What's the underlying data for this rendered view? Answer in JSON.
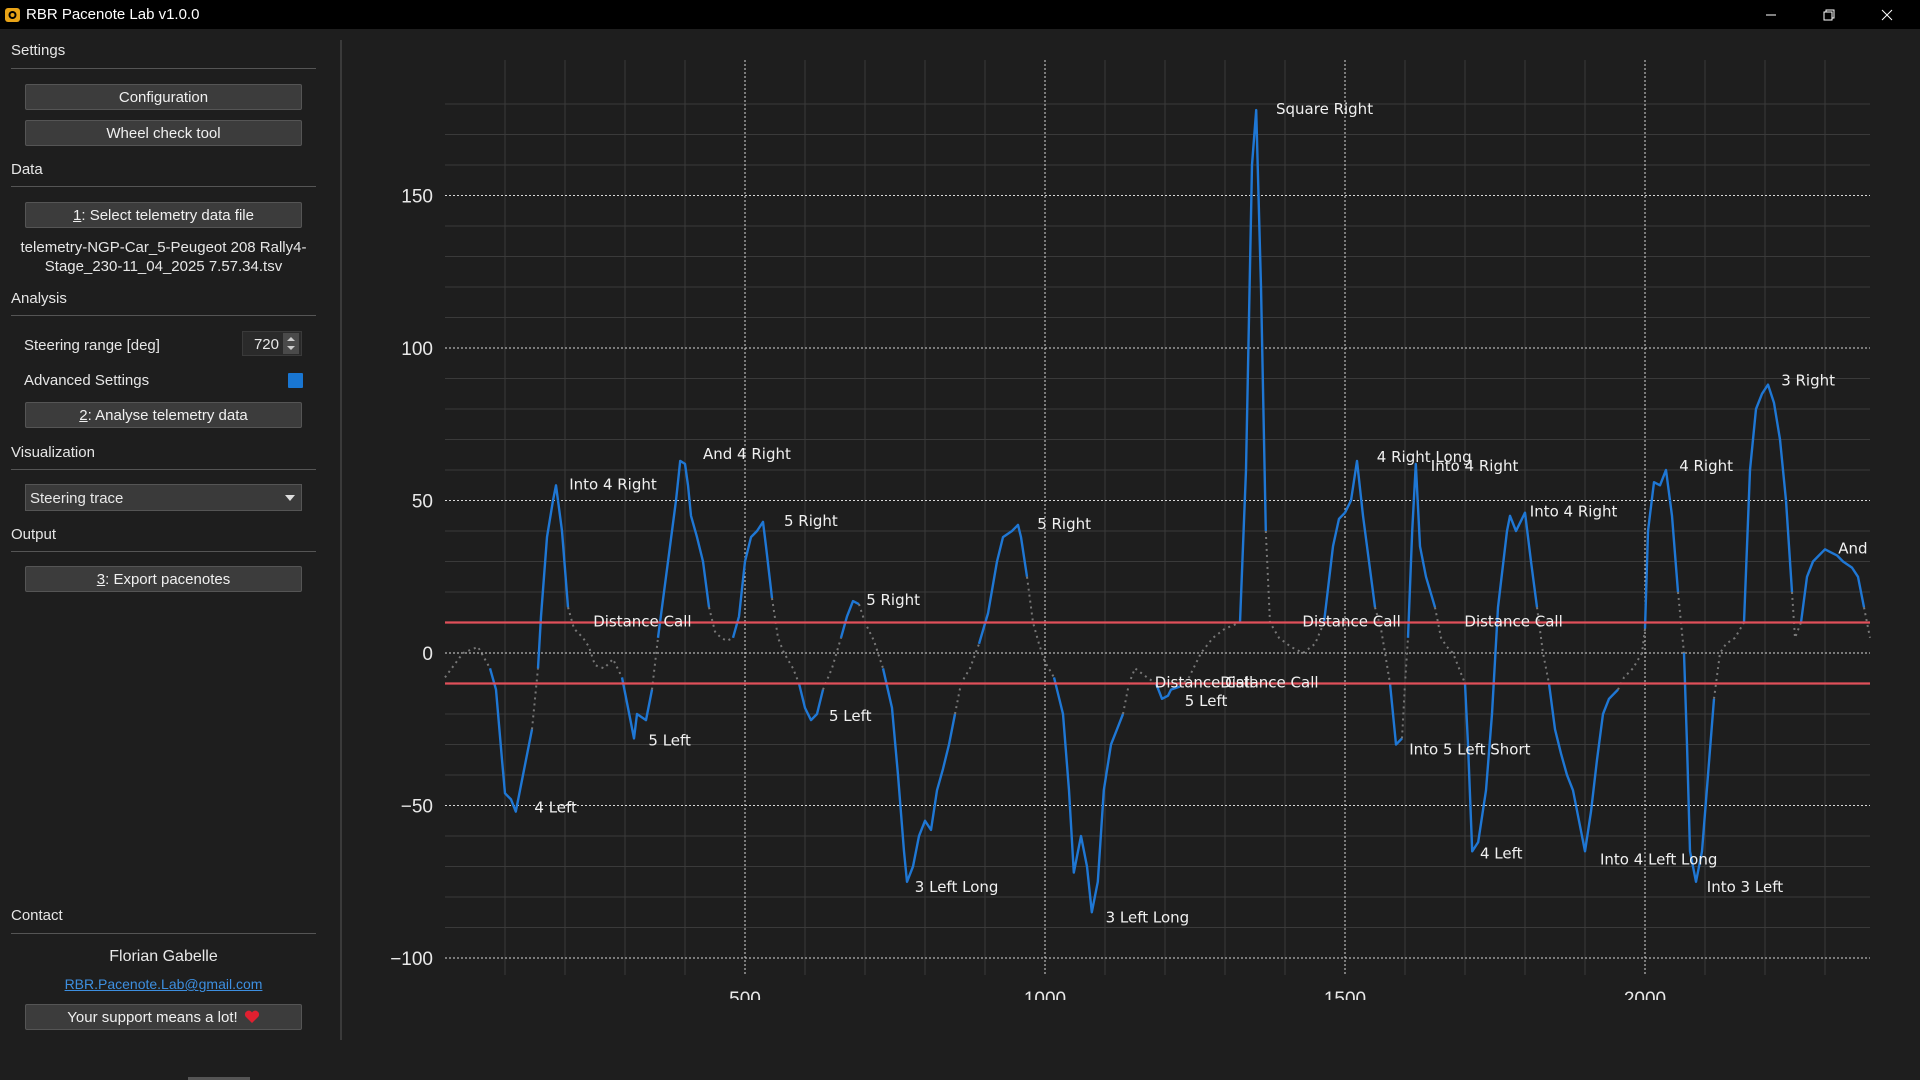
{
  "window": {
    "title": "RBR Pacenote Lab v1.0.0"
  },
  "sidebar": {
    "settings": {
      "label": "Settings",
      "configuration": "Configuration",
      "wheel_check": "Wheel check tool"
    },
    "data": {
      "label": "Data",
      "select_key": "1",
      "select_rest": ": Select telemetry data file",
      "file_line1": "telemetry-NGP-Car_5-Peugeot 208 Rally4-",
      "file_line2": "Stage_230-11_04_2025 7.57.34.tsv"
    },
    "analysis": {
      "label": "Analysis",
      "steering_label": "Steering range [deg]",
      "steering_value": "720",
      "advanced_label": "Advanced Settings",
      "advanced_checked": true,
      "analyse_key": "2",
      "analyse_rest": ": Analyse telemetry data"
    },
    "visualization": {
      "label": "Visualization",
      "selected": "Steering trace"
    },
    "output": {
      "label": "Output",
      "export_key": "3",
      "export_rest": ": Export pacenotes"
    },
    "contact": {
      "label": "Contact",
      "name": "Florian Gabelle",
      "email": "RBR.Pacenote.Lab@gmail.com",
      "support": "Your support means a lot!"
    }
  },
  "colors": {
    "trace": "#1f77d4",
    "threshold": "#e0505a",
    "accent": "#1976d2",
    "background": "#1e1e1e"
  },
  "chart_data": {
    "type": "line",
    "xlim": [
      0,
      2375
    ],
    "ylim": [
      -100,
      185
    ],
    "xticks": [
      500,
      1000,
      1500,
      2000
    ],
    "xtick_labels": [
      "500",
      "1000",
      "1500",
      "2000"
    ],
    "yticks": [
      -100,
      -50,
      0,
      50,
      100,
      150
    ],
    "ytick_labels": [
      "−100",
      "−50",
      "0",
      "50",
      "100",
      "150"
    ],
    "grid": true,
    "thresholds": [
      10,
      -10
    ],
    "trace": [
      [
        0,
        -8
      ],
      [
        30,
        0
      ],
      [
        55,
        2
      ],
      [
        75,
        -5
      ],
      [
        85,
        -12
      ],
      [
        95,
        -35
      ],
      [
        100,
        -46
      ],
      [
        110,
        -48
      ],
      [
        118,
        -52
      ],
      [
        130,
        -40
      ],
      [
        145,
        -25
      ],
      [
        155,
        -5
      ],
      [
        160,
        12
      ],
      [
        170,
        38
      ],
      [
        180,
        50
      ],
      [
        185,
        55
      ],
      [
        195,
        40
      ],
      [
        205,
        15
      ],
      [
        215,
        8
      ],
      [
        230,
        5
      ],
      [
        240,
        2
      ],
      [
        250,
        -4
      ],
      [
        265,
        -5
      ],
      [
        280,
        -2
      ],
      [
        295,
        -8
      ],
      [
        305,
        -18
      ],
      [
        315,
        -28
      ],
      [
        320,
        -20
      ],
      [
        335,
        -22
      ],
      [
        345,
        -12
      ],
      [
        355,
        5
      ],
      [
        365,
        20
      ],
      [
        375,
        35
      ],
      [
        385,
        50
      ],
      [
        392,
        63
      ],
      [
        400,
        62
      ],
      [
        405,
        55
      ],
      [
        410,
        45
      ],
      [
        420,
        38
      ],
      [
        430,
        30
      ],
      [
        440,
        15
      ],
      [
        450,
        7
      ],
      [
        460,
        5
      ],
      [
        470,
        4
      ],
      [
        480,
        5
      ],
      [
        490,
        12
      ],
      [
        500,
        30
      ],
      [
        510,
        38
      ],
      [
        520,
        40
      ],
      [
        530,
        43
      ],
      [
        535,
        35
      ],
      [
        545,
        18
      ],
      [
        555,
        5
      ],
      [
        565,
        0
      ],
      [
        580,
        -5
      ],
      [
        590,
        -10
      ],
      [
        600,
        -18
      ],
      [
        610,
        -22
      ],
      [
        620,
        -20
      ],
      [
        630,
        -12
      ],
      [
        645,
        -5
      ],
      [
        660,
        5
      ],
      [
        670,
        12
      ],
      [
        680,
        17
      ],
      [
        690,
        16
      ],
      [
        700,
        10
      ],
      [
        715,
        4
      ],
      [
        730,
        -5
      ],
      [
        745,
        -18
      ],
      [
        755,
        -40
      ],
      [
        765,
        -65
      ],
      [
        770,
        -75
      ],
      [
        780,
        -70
      ],
      [
        790,
        -60
      ],
      [
        800,
        -55
      ],
      [
        810,
        -58
      ],
      [
        820,
        -45
      ],
      [
        830,
        -38
      ],
      [
        840,
        -30
      ],
      [
        850,
        -20
      ],
      [
        860,
        -10
      ],
      [
        875,
        -5
      ],
      [
        890,
        3
      ],
      [
        905,
        13
      ],
      [
        920,
        30
      ],
      [
        930,
        38
      ],
      [
        945,
        40
      ],
      [
        955,
        42
      ],
      [
        960,
        38
      ],
      [
        970,
        25
      ],
      [
        980,
        10
      ],
      [
        990,
        3
      ],
      [
        1000,
        -3
      ],
      [
        1015,
        -8
      ],
      [
        1030,
        -20
      ],
      [
        1040,
        -45
      ],
      [
        1048,
        -72
      ],
      [
        1060,
        -60
      ],
      [
        1070,
        -70
      ],
      [
        1078,
        -85
      ],
      [
        1088,
        -75
      ],
      [
        1098,
        -45
      ],
      [
        1110,
        -30
      ],
      [
        1120,
        -25
      ],
      [
        1130,
        -20
      ],
      [
        1140,
        -10
      ],
      [
        1150,
        -5
      ],
      [
        1170,
        -8
      ],
      [
        1185,
        -10
      ],
      [
        1195,
        -15
      ],
      [
        1205,
        -14
      ],
      [
        1210,
        -12
      ],
      [
        1225,
        -11
      ],
      [
        1240,
        -8
      ],
      [
        1260,
        0
      ],
      [
        1280,
        5
      ],
      [
        1300,
        8
      ],
      [
        1325,
        10
      ],
      [
        1335,
        60
      ],
      [
        1345,
        160
      ],
      [
        1352,
        178
      ],
      [
        1360,
        120
      ],
      [
        1368,
        40
      ],
      [
        1375,
        10
      ],
      [
        1390,
        5
      ],
      [
        1410,
        2
      ],
      [
        1430,
        0
      ],
      [
        1450,
        3
      ],
      [
        1465,
        10
      ],
      [
        1480,
        35
      ],
      [
        1490,
        44
      ],
      [
        1500,
        46
      ],
      [
        1510,
        50
      ],
      [
        1520,
        63
      ],
      [
        1530,
        45
      ],
      [
        1540,
        30
      ],
      [
        1550,
        15
      ],
      [
        1560,
        8
      ],
      [
        1575,
        -10
      ],
      [
        1585,
        -30
      ],
      [
        1595,
        -28
      ],
      [
        1600,
        -10
      ],
      [
        1605,
        5
      ],
      [
        1612,
        40
      ],
      [
        1618,
        62
      ],
      [
        1625,
        35
      ],
      [
        1635,
        25
      ],
      [
        1650,
        15
      ],
      [
        1660,
        5
      ],
      [
        1670,
        2
      ],
      [
        1680,
        0
      ],
      [
        1690,
        -5
      ],
      [
        1700,
        -10
      ],
      [
        1705,
        -30
      ],
      [
        1712,
        -65
      ],
      [
        1722,
        -62
      ],
      [
        1735,
        -45
      ],
      [
        1745,
        -20
      ],
      [
        1755,
        15
      ],
      [
        1770,
        40
      ],
      [
        1775,
        45
      ],
      [
        1785,
        40
      ],
      [
        1795,
        44
      ],
      [
        1800,
        46
      ],
      [
        1810,
        30
      ],
      [
        1820,
        15
      ],
      [
        1830,
        0
      ],
      [
        1840,
        -10
      ],
      [
        1850,
        -25
      ],
      [
        1860,
        -33
      ],
      [
        1870,
        -40
      ],
      [
        1880,
        -45
      ],
      [
        1890,
        -55
      ],
      [
        1900,
        -65
      ],
      [
        1910,
        -52
      ],
      [
        1920,
        -35
      ],
      [
        1930,
        -20
      ],
      [
        1940,
        -15
      ],
      [
        1955,
        -12
      ],
      [
        1965,
        -8
      ],
      [
        1980,
        -5
      ],
      [
        1995,
        0
      ],
      [
        2000,
        8
      ],
      [
        2005,
        40
      ],
      [
        2015,
        56
      ],
      [
        2025,
        55
      ],
      [
        2035,
        60
      ],
      [
        2045,
        45
      ],
      [
        2055,
        20
      ],
      [
        2065,
        0
      ],
      [
        2070,
        -30
      ],
      [
        2075,
        -65
      ],
      [
        2085,
        -75
      ],
      [
        2095,
        -65
      ],
      [
        2105,
        -40
      ],
      [
        2115,
        -15
      ],
      [
        2125,
        0
      ],
      [
        2135,
        3
      ],
      [
        2150,
        5
      ],
      [
        2165,
        10
      ],
      [
        2175,
        60
      ],
      [
        2185,
        80
      ],
      [
        2195,
        85
      ],
      [
        2205,
        88
      ],
      [
        2215,
        82
      ],
      [
        2225,
        70
      ],
      [
        2235,
        50
      ],
      [
        2245,
        20
      ],
      [
        2250,
        5
      ],
      [
        2260,
        10
      ],
      [
        2270,
        25
      ],
      [
        2280,
        30
      ],
      [
        2290,
        32
      ],
      [
        2300,
        34
      ],
      [
        2310,
        33
      ],
      [
        2320,
        32
      ],
      [
        2330,
        30
      ],
      [
        2345,
        28
      ],
      [
        2355,
        25
      ],
      [
        2365,
        15
      ],
      [
        2375,
        5
      ]
    ],
    "annotations": [
      {
        "text": "Into 4 Right",
        "x": 207,
        "y": 55
      },
      {
        "text": "And 4 Right",
        "x": 430,
        "y": 65
      },
      {
        "text": "5 Right",
        "x": 565,
        "y": 43
      },
      {
        "text": "5 Right",
        "x": 702,
        "y": 17
      },
      {
        "text": "5 Right",
        "x": 987,
        "y": 42
      },
      {
        "text": "Square Right",
        "x": 1385,
        "y": 178
      },
      {
        "text": "4 Right Long",
        "x": 1553,
        "y": 64
      },
      {
        "text": "Into 4 Right",
        "x": 1643,
        "y": 61
      },
      {
        "text": "Into 4 Right",
        "x": 1808,
        "y": 46
      },
      {
        "text": "4 Right",
        "x": 2057,
        "y": 61
      },
      {
        "text": "3 Right",
        "x": 2227,
        "y": 89
      },
      {
        "text": "And",
        "x": 2322,
        "y": 34
      },
      {
        "text": "Distance Call",
        "x": 247,
        "y": 10
      },
      {
        "text": "Distance Call",
        "x": 1429,
        "y": 10
      },
      {
        "text": "Distance Call",
        "x": 1699,
        "y": 10
      },
      {
        "text": "Distance Call",
        "x": 1183,
        "y": -10
      },
      {
        "text": "Distance Call",
        "x": 1292,
        "y": -10
      },
      {
        "text": "4 Left",
        "x": 149,
        "y": -51
      },
      {
        "text": "5 Left",
        "x": 339,
        "y": -29
      },
      {
        "text": "5 Left",
        "x": 640,
        "y": -21
      },
      {
        "text": "5 Left",
        "x": 1233,
        "y": -16
      },
      {
        "text": "3 Left Long",
        "x": 783,
        "y": -77
      },
      {
        "text": "3 Left Long",
        "x": 1101,
        "y": -87
      },
      {
        "text": "Into 5 Left Short",
        "x": 1607,
        "y": -32
      },
      {
        "text": "4 Left",
        "x": 1725,
        "y": -66
      },
      {
        "text": "Into 4 Left Long",
        "x": 1925,
        "y": -68
      },
      {
        "text": "Into 3 Left",
        "x": 2103,
        "y": -77
      }
    ]
  }
}
